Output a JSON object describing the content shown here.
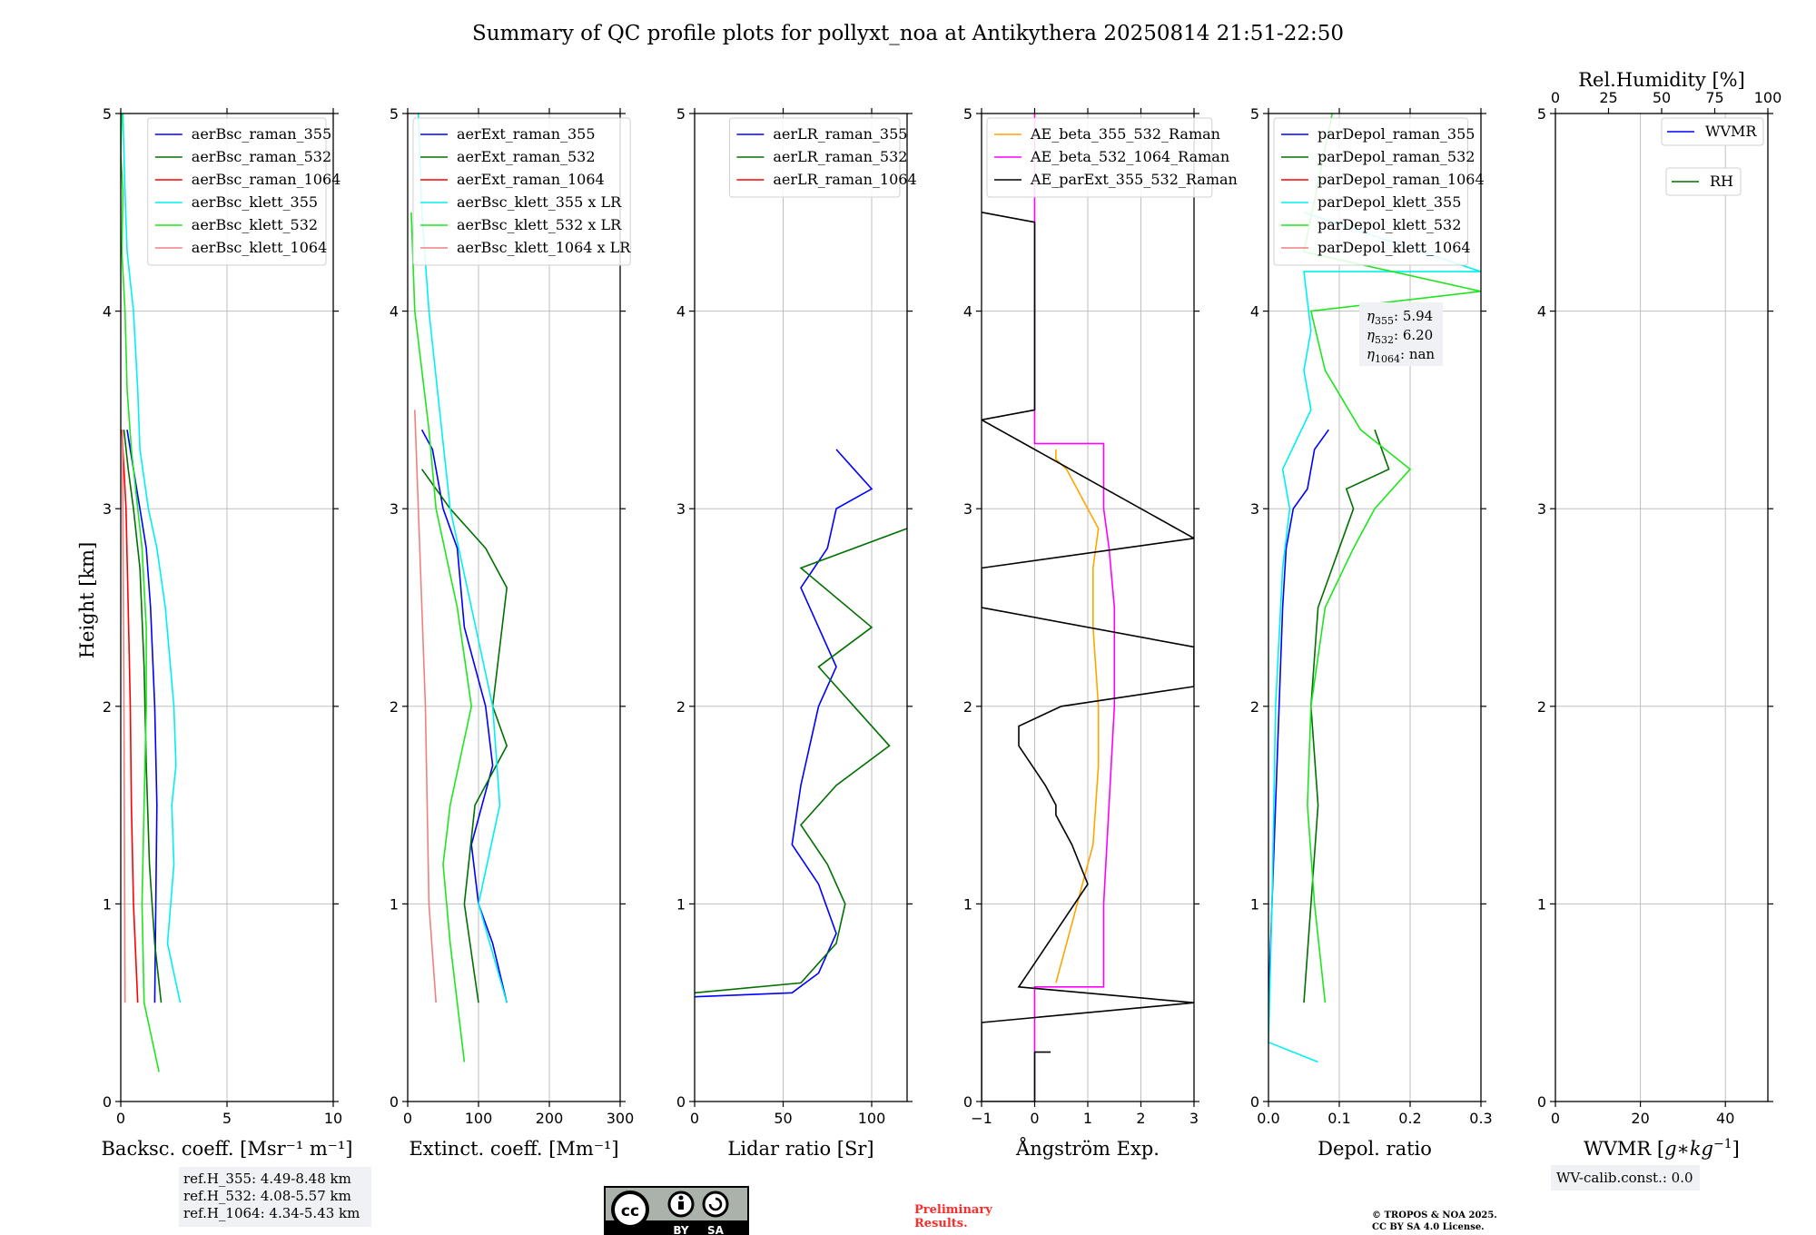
{
  "title": "Summary of QC profile plots for pollyxt_noa at Antikythera 20250814 21:51-22:50",
  "ylabel": "Height [km]",
  "footer": {
    "ref_heights": [
      "ref.H_355: 4.49-8.48 km",
      "ref.H_532: 4.08-5.57 km",
      "ref.H_1064: 4.34-5.43 km"
    ],
    "license_badge": [
      "BY",
      "SA"
    ],
    "preliminary": [
      "Preliminary",
      "Results."
    ],
    "copyright": [
      "© TROPOS & NOA 2025.",
      "CC BY SA 4.0 License."
    ],
    "wv_calib": "WV-calib.const.: 0.0"
  },
  "colors": {
    "blue": "#0000ff",
    "green": "#007000",
    "red": "#ff0000",
    "cyan": "#00f0f0",
    "lime": "#1ee61e",
    "salmon": "#f08080",
    "orange": "#ffa500",
    "magenta": "#ff00ff",
    "black": "#000000"
  },
  "chart_data": [
    {
      "type": "line",
      "id": "backscatter",
      "xlabel": "Backsc. coeff. [Msr⁻¹ m⁻¹]",
      "xlim": [
        0,
        10
      ],
      "ylim": [
        0,
        5
      ],
      "xticks": [
        "0",
        "5",
        "10"
      ],
      "xtick_values": [
        0,
        5,
        10
      ],
      "yticks": [
        "0",
        "1",
        "2",
        "3",
        "4",
        "5"
      ],
      "legend_position": "top-right",
      "series": [
        {
          "name": "aerBsc_raman_355",
          "color": "blue",
          "x": [
            1.6,
            1.65,
            1.7,
            1.6,
            1.4,
            1.2,
            0.9,
            0.6,
            0.3
          ],
          "y": [
            0.5,
            1.0,
            1.5,
            2.0,
            2.5,
            2.8,
            3.0,
            3.2,
            3.4
          ]
        },
        {
          "name": "aerBsc_raman_532",
          "color": "green",
          "x": [
            1.9,
            1.6,
            1.35,
            1.2,
            1.1,
            0.9,
            0.6,
            0.35,
            0.15
          ],
          "y": [
            0.5,
            0.8,
            1.2,
            1.7,
            2.2,
            2.7,
            3.0,
            3.2,
            3.4
          ]
        },
        {
          "name": "aerBsc_raman_1064",
          "color": "red",
          "x": [
            0.8,
            0.6,
            0.5,
            0.45,
            0.35,
            0.25,
            0.15,
            0.05
          ],
          "y": [
            0.5,
            1.0,
            1.5,
            2.0,
            2.5,
            3.0,
            3.2,
            3.4
          ]
        },
        {
          "name": "aerBsc_klett_355",
          "color": "cyan",
          "x": [
            2.8,
            2.2,
            2.5,
            2.4,
            2.6,
            2.5,
            2.1,
            1.7,
            1.3,
            0.9,
            0.8,
            0.6,
            0.3,
            0.2,
            0.1
          ],
          "y": [
            0.5,
            0.8,
            1.2,
            1.5,
            1.7,
            2.0,
            2.5,
            2.8,
            3.0,
            3.3,
            3.6,
            4.0,
            4.3,
            4.6,
            5.0
          ]
        },
        {
          "name": "aerBsc_klett_532",
          "color": "lime",
          "x": [
            1.8,
            1.1,
            1.0,
            1.1,
            1.2,
            1.2,
            1.0,
            0.8,
            0.5,
            0.3,
            0.2,
            0.05,
            0.1,
            0.0,
            0.05
          ],
          "y": [
            0.15,
            0.5,
            1.0,
            1.5,
            2.0,
            2.4,
            2.8,
            3.0,
            3.3,
            3.6,
            4.0,
            4.3,
            4.6,
            4.8,
            5.0
          ]
        },
        {
          "name": "aerBsc_klett_1064",
          "color": "salmon",
          "x": [
            0.2,
            0.15,
            0.1,
            0.08
          ],
          "y": [
            0.5,
            2.0,
            3.0,
            3.4
          ]
        }
      ]
    },
    {
      "type": "line",
      "id": "extinction",
      "xlabel": "Extinct. coeff. [Mm⁻¹]",
      "xlim": [
        0,
        300
      ],
      "ylim": [
        0,
        5
      ],
      "xticks": [
        "0",
        "100",
        "200",
        "300"
      ],
      "xtick_values": [
        0,
        100,
        200,
        300
      ],
      "yticks": [
        "0",
        "1",
        "2",
        "3",
        "4",
        "5"
      ],
      "legend_position": "top-left",
      "series": [
        {
          "name": "aerExt_raman_355",
          "color": "blue",
          "x": [
            140,
            120,
            100,
            90,
            120,
            110,
            80,
            70,
            50,
            35,
            20
          ],
          "y": [
            0.5,
            0.8,
            1.0,
            1.3,
            1.7,
            2.0,
            2.4,
            2.8,
            3.0,
            3.3,
            3.4
          ]
        },
        {
          "name": "aerExt_raman_532",
          "color": "green",
          "x": [
            100,
            80,
            95,
            140,
            120,
            140,
            110,
            60,
            20
          ],
          "y": [
            0.5,
            1.0,
            1.5,
            1.8,
            2.0,
            2.6,
            2.8,
            3.0,
            3.2
          ]
        },
        {
          "name": "aerExt_raman_1064",
          "color": "red",
          "x": [],
          "y": []
        },
        {
          "name": "aerBsc_klett_355 x LR",
          "color": "cyan",
          "x": [
            140,
            100,
            130,
            120,
            90,
            60,
            45,
            30,
            20,
            15
          ],
          "y": [
            0.5,
            1.0,
            1.5,
            2.0,
            2.5,
            3.0,
            3.5,
            4.0,
            4.5,
            5.0
          ]
        },
        {
          "name": "aerBsc_klett_532 x LR",
          "color": "lime",
          "x": [
            80,
            60,
            50,
            60,
            90,
            70,
            40,
            30,
            10,
            5
          ],
          "y": [
            0.2,
            0.8,
            1.2,
            1.5,
            2.0,
            2.5,
            3.0,
            3.4,
            4.0,
            4.5
          ]
        },
        {
          "name": "aerBsc_klett_1064 x LR",
          "color": "salmon",
          "x": [
            40,
            30,
            25,
            20,
            15,
            10
          ],
          "y": [
            0.5,
            1.0,
            2.0,
            2.5,
            3.0,
            3.5
          ]
        }
      ]
    },
    {
      "type": "line",
      "id": "lidar_ratio",
      "xlabel": "Lidar ratio [Sr]",
      "xlim": [
        0,
        120
      ],
      "ylim": [
        0,
        5
      ],
      "xticks": [
        "0",
        "50",
        "100"
      ],
      "xtick_values": [
        0,
        50,
        100
      ],
      "yticks": [
        "0",
        "1",
        "2",
        "3",
        "4",
        "5"
      ],
      "legend_position": "top-right",
      "series": [
        {
          "name": "aerLR_raman_355",
          "color": "blue",
          "x": [
            0,
            55,
            70,
            80,
            70,
            55,
            60,
            70,
            80,
            60,
            75,
            80,
            100,
            90,
            80
          ],
          "y": [
            0.53,
            0.55,
            0.65,
            0.85,
            1.1,
            1.3,
            1.6,
            2.0,
            2.2,
            2.6,
            2.8,
            3.0,
            3.1,
            3.2,
            3.3
          ]
        },
        {
          "name": "aerLR_raman_532",
          "color": "green",
          "x": [
            0,
            60,
            80,
            85,
            75,
            60,
            80,
            110,
            90,
            70,
            100,
            60,
            120
          ],
          "y": [
            0.55,
            0.6,
            0.8,
            1.0,
            1.2,
            1.4,
            1.6,
            1.8,
            2.0,
            2.2,
            2.4,
            2.7,
            2.9
          ]
        },
        {
          "name": "aerLR_raman_1064",
          "color": "red",
          "x": [],
          "y": []
        }
      ]
    },
    {
      "type": "line",
      "id": "angstrom",
      "xlabel": "Ångström Exp.",
      "xlim": [
        -1,
        3
      ],
      "ylim": [
        0,
        5
      ],
      "xticks": [
        "−1",
        "0",
        "1",
        "2",
        "3"
      ],
      "xtick_values": [
        -1,
        0,
        1,
        2,
        3
      ],
      "yticks": [
        "0",
        "1",
        "2",
        "3",
        "4",
        "5"
      ],
      "legend_position": "top-left",
      "series": [
        {
          "name": "AE_beta_355_532_Raman",
          "color": "orange",
          "x": [
            0.4,
            0.7,
            1.1,
            1.2,
            1.2,
            1.1,
            1.1,
            1.2,
            1.0,
            0.6,
            0.4,
            0.4
          ],
          "y": [
            0.6,
            0.9,
            1.3,
            1.7,
            2.0,
            2.4,
            2.7,
            2.9,
            3.0,
            3.2,
            3.25,
            3.3
          ]
        },
        {
          "name": "AE_beta_532_1064_Raman",
          "color": "magenta",
          "x": [
            0,
            0,
            1.3,
            1.3,
            1.4,
            1.5,
            1.5,
            1.4,
            1.3,
            1.3,
            1.3,
            1.1,
            0,
            0
          ],
          "y": [
            0,
            0.58,
            0.58,
            1.0,
            1.5,
            2.0,
            2.5,
            2.8,
            3.0,
            3.3,
            3.33,
            3.33,
            3.33,
            5.0
          ]
        },
        {
          "name": "AE_parExt_355_532_Raman",
          "color": "black",
          "x": [
            0.3,
            0,
            0,
            -1,
            -1,
            3,
            -0.3,
            1,
            0.7,
            0.4,
            0.4,
            0.2,
            -0.3,
            -0.3,
            0.5,
            3,
            3,
            -1,
            -1,
            3,
            -1,
            0,
            0,
            -1
          ],
          "y": [
            0.25,
            0.25,
            0,
            0,
            0.4,
            0.5,
            0.58,
            1.1,
            1.3,
            1.45,
            1.5,
            1.6,
            1.8,
            1.9,
            2.0,
            2.1,
            2.3,
            2.5,
            2.7,
            2.85,
            3.45,
            3.5,
            4.45,
            4.5
          ]
        }
      ]
    },
    {
      "type": "line",
      "id": "depol",
      "xlabel": "Depol. ratio",
      "xlim": [
        0,
        0.3
      ],
      "ylim": [
        0,
        5
      ],
      "xticks": [
        "0.0",
        "0.1",
        "0.2",
        "0.3"
      ],
      "xtick_values": [
        0,
        0.1,
        0.2,
        0.3
      ],
      "yticks": [
        "0",
        "1",
        "2",
        "3",
        "4",
        "5"
      ],
      "legend_position": "top-left",
      "annotation": [
        [
          "η",
          "355",
          ": 5.94"
        ],
        [
          "η",
          "532",
          ": 6.20"
        ],
        [
          "η",
          "1064",
          ": nan"
        ]
      ],
      "series": [
        {
          "name": "parDepol_raman_355",
          "color": "blue",
          "x": [
            0,
            0.005,
            0.01,
            0.015,
            0.02,
            0.025,
            0.035,
            0.055,
            0.065,
            0.085
          ],
          "y": [
            0.5,
            1.0,
            1.5,
            2.0,
            2.5,
            2.8,
            3.0,
            3.1,
            3.3,
            3.4
          ]
        },
        {
          "name": "parDepol_raman_532",
          "color": "green",
          "x": [
            0.05,
            0.06,
            0.07,
            0.06,
            0.07,
            0.1,
            0.12,
            0.11,
            0.17,
            0.15
          ],
          "y": [
            0.5,
            1.0,
            1.5,
            2.0,
            2.5,
            2.8,
            3.0,
            3.1,
            3.2,
            3.4
          ]
        },
        {
          "name": "parDepol_raman_1064",
          "color": "red",
          "x": [],
          "y": []
        },
        {
          "name": "parDepol_klett_355",
          "color": "cyan",
          "x": [
            0.07,
            0,
            0.005,
            0.01,
            0.02,
            0.03,
            0.02,
            0.06,
            0.05,
            0.06,
            0.05,
            0.3,
            0.05
          ],
          "y": [
            0.2,
            0.3,
            1.0,
            2.0,
            2.7,
            3.0,
            3.2,
            3.5,
            3.7,
            3.9,
            4.2,
            4.2,
            4.5
          ]
        },
        {
          "name": "parDepol_klett_532",
          "color": "lime",
          "x": [
            0.08,
            0.065,
            0.055,
            0.06,
            0.08,
            0.12,
            0.15,
            0.2,
            0.13,
            0.08,
            0.06,
            0.3,
            0.05,
            0.09
          ],
          "y": [
            0.5,
            1.0,
            1.5,
            2.0,
            2.5,
            2.8,
            3.0,
            3.2,
            3.4,
            3.7,
            4.0,
            4.1,
            4.3,
            5.0
          ]
        },
        {
          "name": "parDepol_klett_1064",
          "color": "salmon",
          "x": [],
          "y": []
        }
      ]
    },
    {
      "type": "line",
      "id": "wvmr",
      "xlabel": "WVMR [g*kg⁻¹]",
      "xlabel_parts": [
        "WVMR [",
        "g",
        "∗",
        "kg",
        "−1",
        "]"
      ],
      "xlim": [
        0,
        50
      ],
      "ylim": [
        0,
        5
      ],
      "xticks": [
        "0",
        "20",
        "40"
      ],
      "xtick_values": [
        0,
        20,
        40
      ],
      "yticks": [
        "0",
        "1",
        "2",
        "3",
        "4",
        "5"
      ],
      "top_axis": {
        "label": "Rel.Humidity [%]",
        "xlim": [
          0,
          100
        ],
        "xticks": [
          "0",
          "25",
          "50",
          "75",
          "100"
        ],
        "xtick_values": [
          0,
          25,
          50,
          75,
          100
        ]
      },
      "legend_position": "top-right",
      "series": [
        {
          "name": "WVMR",
          "color": "blue",
          "x": [],
          "y": []
        },
        {
          "name": "RH",
          "color": "green",
          "x": [],
          "y": []
        }
      ]
    }
  ]
}
